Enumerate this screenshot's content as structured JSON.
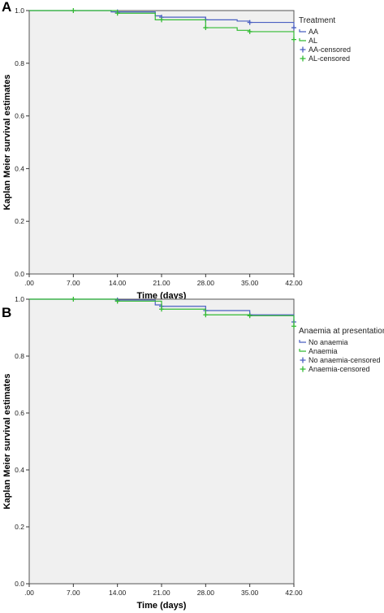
{
  "panels": [
    {
      "label": "A",
      "legend": {
        "title": "Treatment",
        "items": [
          {
            "label": "AA",
            "kind": "line",
            "color": "#4a5fc1"
          },
          {
            "label": "AL",
            "kind": "line",
            "color": "#33bb33"
          },
          {
            "label": "AA-censored",
            "kind": "censor",
            "color": "#4a5fc1"
          },
          {
            "label": "AL-censored",
            "kind": "censor",
            "color": "#33bb33"
          }
        ]
      }
    },
    {
      "label": "B",
      "legend": {
        "title": "Anaemia at presentation",
        "items": [
          {
            "label": "No anaemia",
            "kind": "line",
            "color": "#4a5fc1"
          },
          {
            "label": "Anaemia",
            "kind": "line",
            "color": "#33bb33"
          },
          {
            "label": "No anaemia-censored",
            "kind": "censor",
            "color": "#4a5fc1"
          },
          {
            "label": "Anaemia-censored",
            "kind": "censor",
            "color": "#33bb33"
          }
        ]
      }
    }
  ],
  "chart_data": [
    {
      "type": "line",
      "step": true,
      "xlabel": "Time (days)",
      "ylabel": "Kaplan Meier survival estimates",
      "xlim": [
        0,
        42
      ],
      "ylim": [
        0,
        1.0
      ],
      "xticks": [
        ".00",
        "7.00",
        "14.00",
        "21.00",
        "28.00",
        "35.00",
        "42.00"
      ],
      "yticks": [
        "0.0",
        "0.2",
        "0.4",
        "0.6",
        "0.8",
        "1.0"
      ],
      "legend_position": "right",
      "series": [
        {
          "name": "AA",
          "color": "#4a5fc1",
          "x": [
            0,
            13,
            14,
            20,
            21,
            28,
            33,
            35,
            42
          ],
          "y": [
            1.0,
            0.995,
            0.995,
            0.98,
            0.975,
            0.965,
            0.96,
            0.955,
            0.935
          ],
          "censored_x": [
            14,
            21,
            28,
            35,
            42
          ],
          "censored_y": [
            0.995,
            0.975,
            0.965,
            0.955,
            0.935
          ]
        },
        {
          "name": "AL",
          "color": "#33bb33",
          "x": [
            0,
            7,
            14,
            20,
            28,
            33,
            35,
            42
          ],
          "y": [
            1.0,
            1.0,
            0.99,
            0.965,
            0.935,
            0.925,
            0.92,
            0.89
          ],
          "censored_x": [
            7,
            14,
            21,
            28,
            35,
            42
          ],
          "censored_y": [
            1.0,
            0.99,
            0.965,
            0.935,
            0.92,
            0.89
          ]
        }
      ]
    },
    {
      "type": "line",
      "step": true,
      "xlabel": "Time (days)",
      "ylabel": "Kaplan Meier survival estimates",
      "xlim": [
        0,
        42
      ],
      "ylim": [
        0,
        1.0
      ],
      "xticks": [
        ".00",
        "7.00",
        "14.00",
        "21.00",
        "28.00",
        "35.00",
        "42.00"
      ],
      "yticks": [
        "0.0",
        "0.2",
        "0.4",
        "0.6",
        "0.8",
        "1.0"
      ],
      "legend_position": "right",
      "series": [
        {
          "name": "No anaemia",
          "color": "#4a5fc1",
          "x": [
            0,
            14,
            20,
            21,
            28,
            35,
            42
          ],
          "y": [
            1.0,
            0.997,
            0.98,
            0.975,
            0.96,
            0.945,
            0.92
          ],
          "censored_x": [
            14,
            21,
            28,
            35,
            42
          ],
          "censored_y": [
            0.997,
            0.975,
            0.96,
            0.945,
            0.92
          ]
        },
        {
          "name": "Anaemia",
          "color": "#33bb33",
          "x": [
            0,
            7,
            14,
            21,
            28,
            35,
            42
          ],
          "y": [
            1.0,
            1.0,
            0.993,
            0.965,
            0.945,
            0.942,
            0.905
          ],
          "censored_x": [
            7,
            14,
            21,
            28,
            35,
            42
          ],
          "censored_y": [
            1.0,
            0.993,
            0.965,
            0.945,
            0.942,
            0.905
          ]
        }
      ]
    }
  ]
}
